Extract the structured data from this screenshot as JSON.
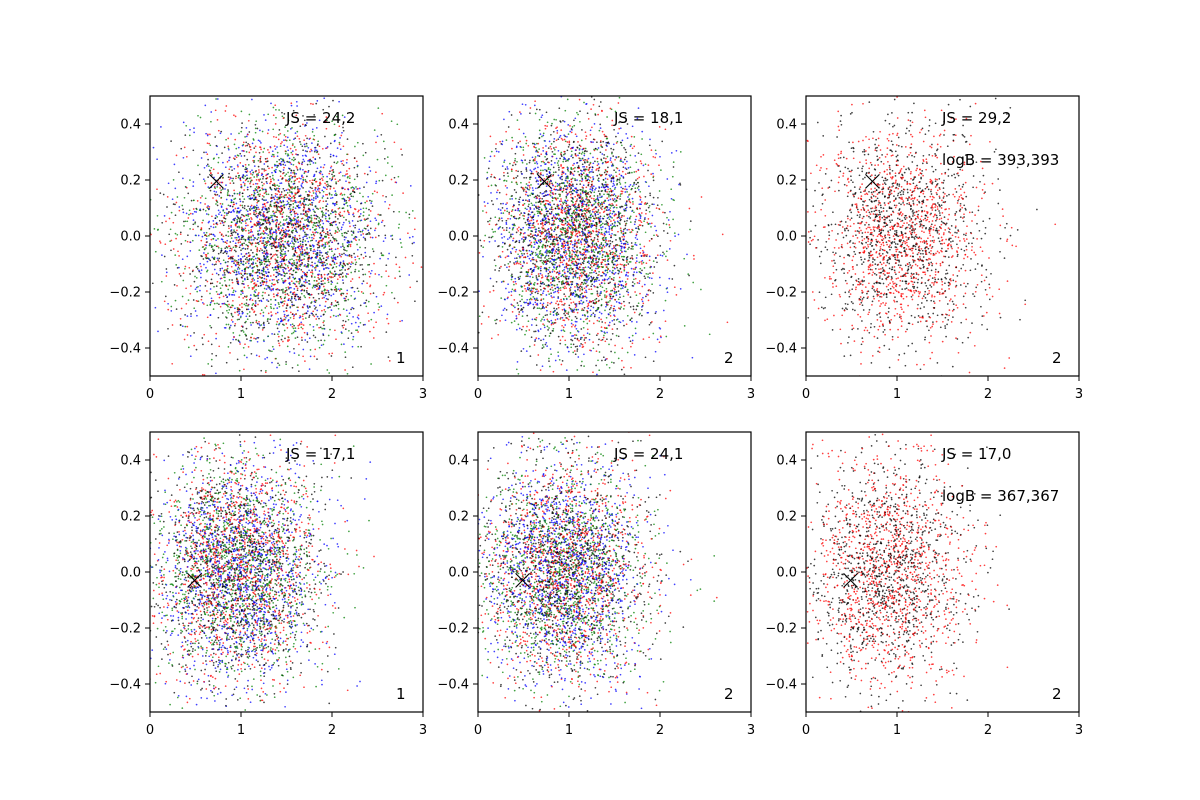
{
  "colors": {
    "red": "#ff0000",
    "green": "#008000",
    "blue": "#0000ff",
    "black": "#000000"
  },
  "chart_data": [
    {
      "type": "scatter",
      "title": "",
      "xlabel": "",
      "ylabel": "",
      "xlim": [
        0,
        3
      ],
      "ylim": [
        -0.5,
        0.5
      ],
      "xticks": [
        "0",
        "1",
        "2",
        "3"
      ],
      "yticks": [
        "−0.4",
        "−0.2",
        "0.0",
        "0.2",
        "0.4"
      ],
      "series_colors": [
        "blue",
        "green",
        "red",
        "black"
      ],
      "distribution": {
        "x_mean": 1.45,
        "x_sd": 0.55,
        "y_mean": 0.0,
        "y_sd": 0.2
      },
      "marker": {
        "x": 0.73,
        "y": 0.195
      },
      "annotations": [
        {
          "text": "JS = 24,2"
        }
      ],
      "corner_label": "1"
    },
    {
      "type": "scatter",
      "title": "",
      "xlabel": "",
      "ylabel": "",
      "xlim": [
        0,
        3
      ],
      "ylim": [
        -0.5,
        0.5
      ],
      "xticks": [
        "0",
        "1",
        "2",
        "3"
      ],
      "yticks": [
        "−0.4",
        "−0.2",
        "0.0",
        "0.2",
        "0.4"
      ],
      "series_colors": [
        "blue",
        "green",
        "red",
        "black"
      ],
      "distribution": {
        "x_mean": 1.05,
        "x_sd": 0.45,
        "y_mean": 0.0,
        "y_sd": 0.2
      },
      "marker": {
        "x": 0.73,
        "y": 0.195
      },
      "annotations": [
        {
          "text": "JS = 18,1"
        }
      ],
      "corner_label": "2"
    },
    {
      "type": "scatter",
      "title": "",
      "xlabel": "",
      "ylabel": "",
      "xlim": [
        0,
        3
      ],
      "ylim": [
        -0.5,
        0.5
      ],
      "xticks": [
        "0",
        "1",
        "2",
        "3"
      ],
      "yticks": [
        "−0.4",
        "−0.2",
        "0.0",
        "0.2",
        "0.4"
      ],
      "series_colors": [
        "black",
        "red"
      ],
      "distribution": {
        "x_mean": 1.05,
        "x_sd": 0.45,
        "y_mean": 0.0,
        "y_sd": 0.2
      },
      "marker": {
        "x": 0.73,
        "y": 0.195
      },
      "annotations": [
        {
          "text": "JS = 29,2"
        },
        {
          "text": "logB = 393,393"
        }
      ],
      "corner_label": "2"
    },
    {
      "type": "scatter",
      "title": "",
      "xlabel": "",
      "ylabel": "",
      "xlim": [
        0,
        3
      ],
      "ylim": [
        -0.5,
        0.5
      ],
      "xticks": [
        "0",
        "1",
        "2",
        "3"
      ],
      "yticks": [
        "−0.4",
        "−0.2",
        "0.0",
        "0.2",
        "0.4"
      ],
      "series_colors": [
        "blue",
        "green",
        "red",
        "black"
      ],
      "distribution": {
        "x_mean": 0.95,
        "x_sd": 0.45,
        "y_mean": 0.0,
        "y_sd": 0.2
      },
      "marker": {
        "x": 0.49,
        "y": -0.03
      },
      "annotations": [
        {
          "text": "JS = 17,1"
        }
      ],
      "corner_label": "1"
    },
    {
      "type": "scatter",
      "title": "",
      "xlabel": "",
      "ylabel": "",
      "xlim": [
        0,
        3
      ],
      "ylim": [
        -0.5,
        0.5
      ],
      "xticks": [
        "0",
        "1",
        "2",
        "3"
      ],
      "yticks": [
        "−0.4",
        "−0.2",
        "0.0",
        "0.2",
        "0.4"
      ],
      "series_colors": [
        "blue",
        "green",
        "red",
        "black"
      ],
      "distribution": {
        "x_mean": 0.95,
        "x_sd": 0.45,
        "y_mean": 0.0,
        "y_sd": 0.2
      },
      "marker": {
        "x": 0.49,
        "y": -0.03
      },
      "annotations": [
        {
          "text": "JS = 24,1"
        }
      ],
      "corner_label": "2"
    },
    {
      "type": "scatter",
      "title": "",
      "xlabel": "",
      "ylabel": "",
      "xlim": [
        0,
        3
      ],
      "ylim": [
        -0.5,
        0.5
      ],
      "xticks": [
        "0",
        "1",
        "2",
        "3"
      ],
      "yticks": [
        "−0.4",
        "−0.2",
        "0.0",
        "0.2",
        "0.4"
      ],
      "series_colors": [
        "black",
        "red"
      ],
      "distribution": {
        "x_mean": 0.9,
        "x_sd": 0.42,
        "y_mean": 0.0,
        "y_sd": 0.2
      },
      "marker": {
        "x": 0.49,
        "y": -0.03
      },
      "annotations": [
        {
          "text": "JS = 17,0"
        },
        {
          "text": "logB = 367,367"
        }
      ],
      "corner_label": "2"
    }
  ]
}
